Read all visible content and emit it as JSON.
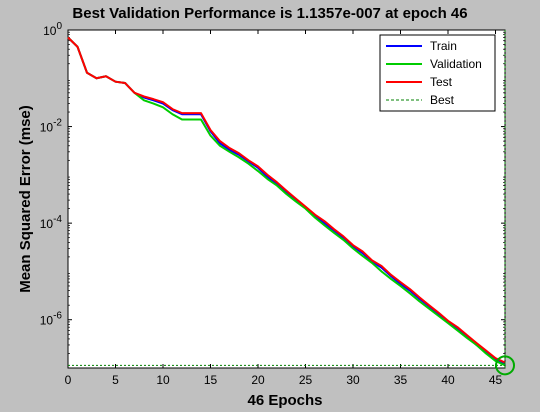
{
  "chart_data": {
    "type": "line",
    "title": "Best Validation Performance is 1.1357e-007 at epoch 46",
    "xlabel": "46 Epochs",
    "ylabel": "Mean Squared Error  (mse)",
    "xlim": [
      0,
      46
    ],
    "ylim": [
      1e-07,
      1
    ],
    "yscale": "log",
    "x_ticks": [
      0,
      5,
      10,
      15,
      20,
      25,
      30,
      35,
      40,
      45
    ],
    "y_ticks": [
      {
        "value": 1,
        "base": "10",
        "exp": "0"
      },
      {
        "value": 0.01,
        "base": "10",
        "exp": "-2"
      },
      {
        "value": 0.0001,
        "base": "10",
        "exp": "-4"
      },
      {
        "value": 1e-06,
        "base": "10",
        "exp": "-6"
      }
    ],
    "legend_position": "top-right",
    "x": [
      0,
      1,
      2,
      3,
      4,
      5,
      6,
      7,
      8,
      9,
      10,
      11,
      12,
      13,
      14,
      15,
      16,
      17,
      18,
      19,
      20,
      21,
      22,
      23,
      24,
      25,
      26,
      27,
      28,
      29,
      30,
      31,
      32,
      33,
      34,
      35,
      36,
      37,
      38,
      39,
      40,
      41,
      42,
      43,
      44,
      45,
      46
    ],
    "series": [
      {
        "name": "Train",
        "color": "#0000ff",
        "dashed": false,
        "values": [
          0.7,
          0.45,
          0.13,
          0.1,
          0.11,
          0.085,
          0.08,
          0.05,
          0.04,
          0.035,
          0.03,
          0.022,
          0.018,
          0.018,
          0.018,
          0.008,
          0.0045,
          0.0033,
          0.0026,
          0.0019,
          0.0014,
          0.0009,
          0.00065,
          0.00044,
          0.0003,
          0.00021,
          0.00014,
          0.0001,
          7e-05,
          5e-05,
          3.3e-05,
          2.4e-05,
          1.6e-05,
          1.2e-05,
          8e-06,
          5.5e-06,
          4e-06,
          2.7e-06,
          1.9e-06,
          1.3e-06,
          9e-07,
          6.5e-07,
          4.5e-07,
          3e-07,
          2.1e-07,
          1.5e-07,
          1.2e-07
        ]
      },
      {
        "name": "Validation",
        "color": "#00cc00",
        "dashed": false,
        "values": [
          0.7,
          0.45,
          0.13,
          0.1,
          0.11,
          0.085,
          0.08,
          0.05,
          0.035,
          0.03,
          0.025,
          0.018,
          0.014,
          0.014,
          0.014,
          0.0065,
          0.004,
          0.003,
          0.0023,
          0.0017,
          0.0012,
          0.00082,
          0.0006,
          0.0004,
          0.00028,
          0.0002,
          0.00013,
          9e-05,
          6.3e-05,
          4.5e-05,
          3e-05,
          2.1e-05,
          1.5e-05,
          1e-05,
          7e-06,
          5e-06,
          3.5e-06,
          2.4e-06,
          1.7e-06,
          1.2e-06,
          8.5e-07,
          6e-07,
          4.2e-07,
          3e-07,
          2e-07,
          1.4e-07,
          1.1357e-07
        ]
      },
      {
        "name": "Test",
        "color": "#ff0000",
        "dashed": false,
        "values": [
          0.7,
          0.45,
          0.13,
          0.1,
          0.11,
          0.085,
          0.08,
          0.05,
          0.042,
          0.037,
          0.032,
          0.023,
          0.019,
          0.019,
          0.019,
          0.0085,
          0.005,
          0.0036,
          0.0028,
          0.002,
          0.0015,
          0.001,
          0.0007,
          0.00047,
          0.00032,
          0.00022,
          0.00015,
          0.00011,
          7.5e-05,
          5.3e-05,
          3.5e-05,
          2.6e-05,
          1.7e-05,
          1.3e-05,
          8.5e-06,
          6e-06,
          4.3e-06,
          2.9e-06,
          2e-06,
          1.4e-06,
          9.5e-07,
          7e-07,
          4.8e-07,
          3.3e-07,
          2.3e-07,
          1.6e-07,
          1.3e-07
        ]
      },
      {
        "name": "Best",
        "color": "#008000",
        "dashed": true,
        "best_epoch": 46,
        "best_value": 1.1357e-07
      }
    ]
  }
}
